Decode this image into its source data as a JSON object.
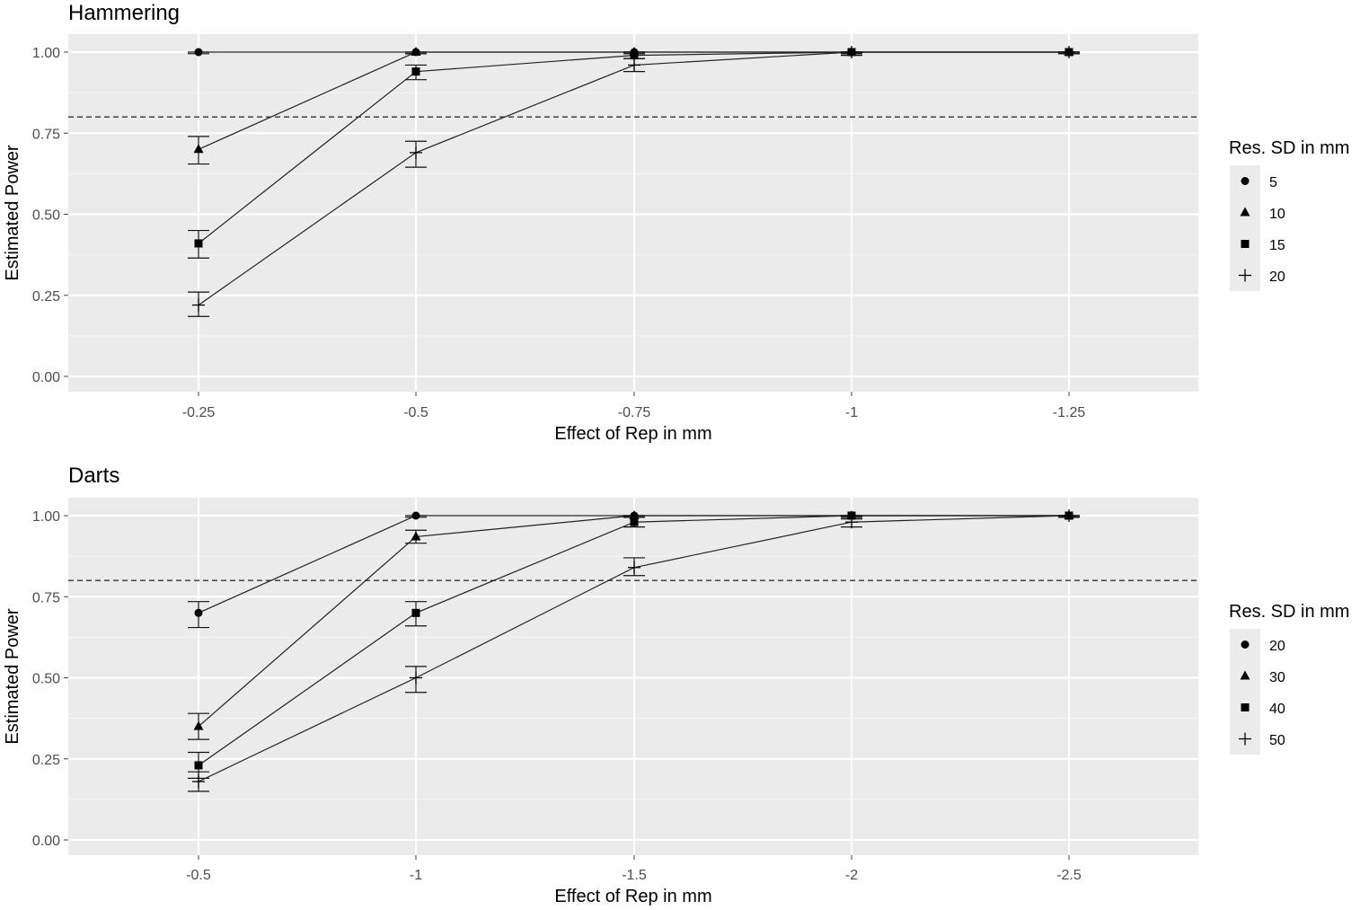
{
  "chart_data": [
    {
      "type": "line",
      "title": "Hammering",
      "xlabel": "Effect of Rep in mm",
      "ylabel": "Estimated Power",
      "categories": [
        "-0.25",
        "-0.5",
        "-0.75",
        "-1",
        "-1.25"
      ],
      "x": [
        -0.25,
        -0.5,
        -0.75,
        -1,
        -1.25
      ],
      "ylim": [
        0,
        1
      ],
      "yticks": [
        "0.00",
        "0.25",
        "0.50",
        "0.75",
        "1.00"
      ],
      "reference_line": 0.8,
      "grid": true,
      "legend": {
        "title": "Res. SD in mm",
        "position": "right"
      },
      "series": [
        {
          "name": "5",
          "shape": "circle",
          "values": [
            1.0,
            1.0,
            1.0,
            1.0,
            1.0
          ],
          "lower": [
            0.995,
            0.995,
            0.995,
            0.995,
            0.995
          ],
          "upper": [
            1.0,
            1.0,
            1.0,
            1.0,
            1.0
          ]
        },
        {
          "name": "10",
          "shape": "triangle",
          "values": [
            0.7,
            1.0,
            1.0,
            1.0,
            1.0
          ],
          "lower": [
            0.655,
            0.995,
            0.995,
            0.995,
            0.995
          ],
          "upper": [
            0.74,
            1.0,
            1.0,
            1.0,
            1.0
          ]
        },
        {
          "name": "15",
          "shape": "square",
          "values": [
            0.41,
            0.94,
            0.99,
            1.0,
            1.0
          ],
          "lower": [
            0.365,
            0.915,
            0.98,
            0.995,
            0.995
          ],
          "upper": [
            0.45,
            0.96,
            1.0,
            1.0,
            1.0
          ]
        },
        {
          "name": "20",
          "shape": "plus",
          "values": [
            0.22,
            0.69,
            0.96,
            1.0,
            1.0
          ],
          "lower": [
            0.185,
            0.645,
            0.94,
            0.99,
            0.995
          ],
          "upper": [
            0.26,
            0.725,
            0.98,
            1.0,
            1.0
          ]
        }
      ]
    },
    {
      "type": "line",
      "title": "Darts",
      "xlabel": "Effect of Rep in mm",
      "ylabel": "Estimated Power",
      "categories": [
        "-0.5",
        "-1",
        "-1.5",
        "-2",
        "-2.5"
      ],
      "x": [
        -0.5,
        -1,
        -1.5,
        -2,
        -2.5
      ],
      "ylim": [
        0,
        1
      ],
      "yticks": [
        "0.00",
        "0.25",
        "0.50",
        "0.75",
        "1.00"
      ],
      "reference_line": 0.8,
      "grid": true,
      "legend": {
        "title": "Res. SD in mm",
        "position": "right"
      },
      "series": [
        {
          "name": "20",
          "shape": "circle",
          "values": [
            0.7,
            1.0,
            1.0,
            1.0,
            1.0
          ],
          "lower": [
            0.655,
            0.995,
            0.995,
            0.995,
            0.995
          ],
          "upper": [
            0.735,
            1.0,
            1.0,
            1.0,
            1.0
          ]
        },
        {
          "name": "30",
          "shape": "triangle",
          "values": [
            0.35,
            0.935,
            1.0,
            1.0,
            1.0
          ],
          "lower": [
            0.31,
            0.915,
            0.995,
            0.995,
            0.995
          ],
          "upper": [
            0.39,
            0.955,
            1.0,
            1.0,
            1.0
          ]
        },
        {
          "name": "40",
          "shape": "square",
          "values": [
            0.23,
            0.7,
            0.98,
            1.0,
            1.0
          ],
          "lower": [
            0.19,
            0.66,
            0.965,
            0.99,
            0.995
          ],
          "upper": [
            0.27,
            0.735,
            0.995,
            1.0,
            1.0
          ]
        },
        {
          "name": "50",
          "shape": "plus",
          "values": [
            0.18,
            0.5,
            0.84,
            0.98,
            1.0
          ],
          "lower": [
            0.15,
            0.455,
            0.815,
            0.965,
            0.995
          ],
          "upper": [
            0.21,
            0.535,
            0.87,
            0.995,
            1.0
          ]
        }
      ]
    }
  ]
}
